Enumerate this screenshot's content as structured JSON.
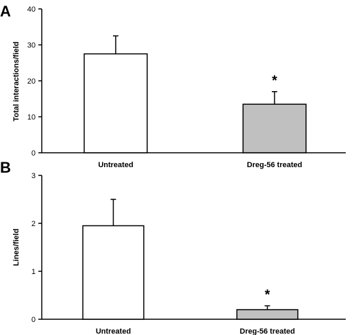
{
  "chart_data": [
    {
      "type": "bar",
      "panel": "A",
      "categories": [
        "Untreated",
        "Dreg-56 treated"
      ],
      "values": [
        27.5,
        13.5
      ],
      "errors": [
        5.0,
        3.5
      ],
      "ylabel": "Total interactions/field",
      "ylim": [
        0,
        40
      ],
      "yticks": [
        0,
        10,
        20,
        30,
        40
      ],
      "bar_colors": [
        "#ffffff",
        "#c0c0c0"
      ],
      "annotations": [
        "",
        "*"
      ]
    },
    {
      "type": "bar",
      "panel": "B",
      "categories": [
        "Untreated",
        "Dreg-56 treated"
      ],
      "values": [
        1.95,
        0.2
      ],
      "errors": [
        0.55,
        0.08
      ],
      "ylabel": "Lines/field",
      "ylim": [
        0,
        3
      ],
      "yticks": [
        0,
        1,
        2,
        3
      ],
      "bar_colors": [
        "#ffffff",
        "#c0c0c0"
      ],
      "annotations": [
        "",
        "*"
      ]
    }
  ]
}
